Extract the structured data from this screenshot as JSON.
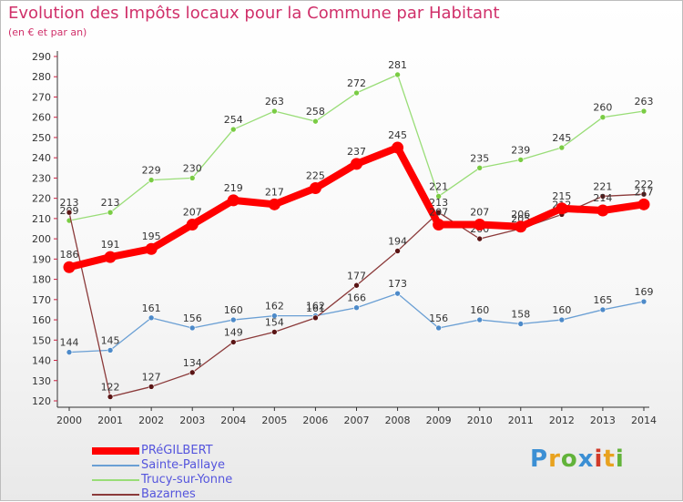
{
  "chart_data": {
    "type": "line",
    "title": "Evolution des Impôts locaux pour la Commune par Habitant",
    "subtitle": "(en € et par an)",
    "xlabel": "",
    "ylabel": "",
    "ylim": [
      120,
      290
    ],
    "ytick_step": 10,
    "categories": [
      "2000",
      "2001",
      "2002",
      "2003",
      "2004",
      "2005",
      "2006",
      "2007",
      "2008",
      "2009",
      "2010",
      "2011",
      "2012",
      "2013",
      "2014"
    ],
    "series": [
      {
        "name": "PRéGILBERT",
        "color": "#ff0000",
        "marker": "#ff0000",
        "width": 8,
        "values": [
          186,
          191,
          195,
          207,
          219,
          217,
          225,
          237,
          245,
          207,
          207,
          206,
          215,
          214,
          217
        ]
      },
      {
        "name": "Sainte-Pallaye",
        "color": "#6a9fd4",
        "marker": "#4d8ac9",
        "width": 1.3,
        "values": [
          144,
          145,
          161,
          156,
          160,
          162,
          162,
          166,
          173,
          156,
          160,
          158,
          160,
          165,
          169
        ]
      },
      {
        "name": "Trucy-sur-Yonne",
        "color": "#99dd77",
        "marker": "#7acc44",
        "width": 1.3,
        "values": [
          209,
          213,
          229,
          230,
          254,
          263,
          258,
          272,
          281,
          221,
          235,
          239,
          245,
          260,
          263
        ]
      },
      {
        "name": "Bazarnes",
        "color": "#8b3a3a",
        "marker": "#5a1515",
        "width": 1.3,
        "values": [
          213,
          122,
          127,
          134,
          149,
          154,
          161,
          177,
          194,
          213,
          200,
          205,
          212,
          221,
          222
        ]
      }
    ],
    "legend_position": "bottom-left",
    "grid": false
  },
  "brand": {
    "letters": [
      "P",
      "r",
      "o",
      "x",
      "i",
      "t",
      "i"
    ],
    "colors": [
      "#3b8fd4",
      "#e8a21f",
      "#62b33a",
      "#3b8fd4",
      "#d13a2a",
      "#e8a21f",
      "#62b33a"
    ]
  }
}
